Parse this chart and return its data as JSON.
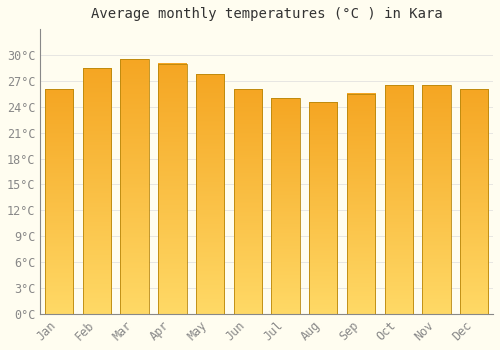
{
  "title": "Average monthly temperatures (°C ) in Kara",
  "months": [
    "Jan",
    "Feb",
    "Mar",
    "Apr",
    "May",
    "Jun",
    "Jul",
    "Aug",
    "Sep",
    "Oct",
    "Nov",
    "Dec"
  ],
  "values": [
    26.0,
    28.5,
    29.5,
    29.0,
    27.8,
    26.0,
    25.0,
    24.5,
    25.5,
    26.5,
    26.5,
    26.0
  ],
  "bar_color_top": "#F5A623",
  "bar_color_bottom": "#FFD966",
  "bar_edge_color": "#B8860B",
  "background_color": "#FFFDF0",
  "grid_color": "#DDDDDD",
  "text_color": "#888888",
  "ylim": [
    0,
    33
  ],
  "yticks": [
    0,
    3,
    6,
    9,
    12,
    15,
    18,
    21,
    24,
    27,
    30
  ],
  "title_fontsize": 10,
  "tick_fontsize": 8.5,
  "bar_width": 0.75
}
